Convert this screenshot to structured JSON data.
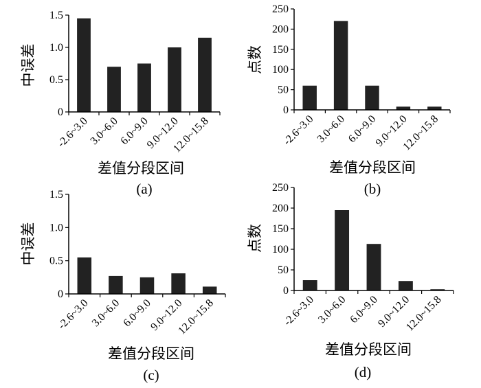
{
  "chart_data": [
    {
      "id": "a",
      "type": "bar",
      "caption": "(a)",
      "xlabel": "差值分段区间",
      "ylabel": "中误差",
      "categories": [
        "-2.6~3.0",
        "3.0~6.0",
        "6.0~9.0",
        "9.0~12.0",
        "12.0~15.8"
      ],
      "values": [
        1.45,
        0.7,
        0.75,
        1.0,
        1.15
      ],
      "ylim": [
        0,
        1.5
      ],
      "yticks": [
        "0",
        "0.5",
        "1.0",
        "1.5"
      ],
      "bar_color": "#222222"
    },
    {
      "id": "b",
      "type": "bar",
      "caption": "(b)",
      "xlabel": "差值分段区间",
      "ylabel": "点数",
      "categories": [
        "-2.6~3.0",
        "3.0~6.0",
        "6.0~9.0",
        "9.0~12.0",
        "12.0~15.8"
      ],
      "values": [
        60,
        220,
        60,
        8,
        8
      ],
      "ylim": [
        0,
        250
      ],
      "yticks": [
        "0",
        "50",
        "100",
        "150",
        "200",
        "250"
      ],
      "bar_color": "#222222"
    },
    {
      "id": "c",
      "type": "bar",
      "caption": "(c)",
      "xlabel": "差值分段区间",
      "ylabel": "中误差",
      "categories": [
        "-2.6~3.0",
        "3.0~6.0",
        "6.0~9.0",
        "9.0~12.0",
        "12.0~15.8"
      ],
      "values": [
        0.55,
        0.27,
        0.25,
        0.31,
        0.11
      ],
      "ylim": [
        0,
        1.5
      ],
      "yticks": [
        "0",
        "0.5",
        "1.0",
        "1.5"
      ],
      "bar_color": "#222222"
    },
    {
      "id": "d",
      "type": "bar",
      "caption": "(d)",
      "xlabel": "差值分段区间",
      "ylabel": "点数",
      "categories": [
        "-2.6~3.0",
        "3.0~6.0",
        "6.0~9.0",
        "9.0~12.0",
        "12.0~15.8"
      ],
      "values": [
        25,
        195,
        113,
        23,
        3
      ],
      "ylim": [
        0,
        250
      ],
      "yticks": [
        "0",
        "50",
        "100",
        "150",
        "200",
        "250"
      ],
      "bar_color": "#222222"
    }
  ]
}
